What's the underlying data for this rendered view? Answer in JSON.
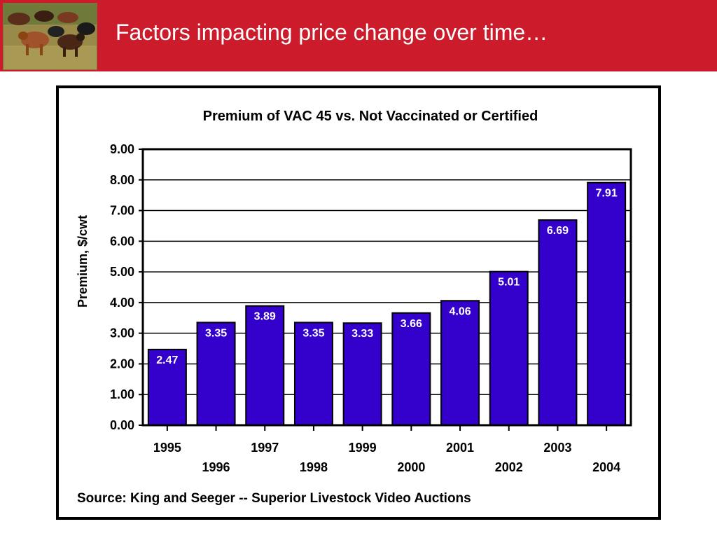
{
  "slide": {
    "title": "Factors impacting price change over time…",
    "photo_icon": "cattle-herd-photo"
  },
  "colors": {
    "banner": "#cc1b2b",
    "bar_fill": "#3300cc",
    "bar_stroke": "#000000",
    "frame": "#000000"
  },
  "chart_data": {
    "type": "bar",
    "title": "Premium of VAC 45 vs. Not Vaccinated or Certified",
    "ylabel": "Premium, $/cwt",
    "xlabel": "",
    "categories": [
      "1995",
      "1996",
      "1997",
      "1998",
      "1999",
      "2000",
      "2001",
      "2002",
      "2003",
      "2004"
    ],
    "values": [
      2.47,
      3.35,
      3.89,
      3.35,
      3.33,
      3.66,
      4.06,
      5.01,
      6.69,
      7.91
    ],
    "data_labels": [
      "2.47",
      "3.35",
      "3.89",
      "3.35",
      "3.33",
      "3.66",
      "4.06",
      "5.01",
      "6.69",
      "7.91"
    ],
    "ylim": [
      0,
      9
    ],
    "y_ticks": [
      "0.00",
      "1.00",
      "2.00",
      "3.00",
      "4.00",
      "5.00",
      "6.00",
      "7.00",
      "8.00",
      "9.00"
    ],
    "grid": true,
    "source": "Source: King and Seeger -- Superior Livestock Video Auctions"
  }
}
